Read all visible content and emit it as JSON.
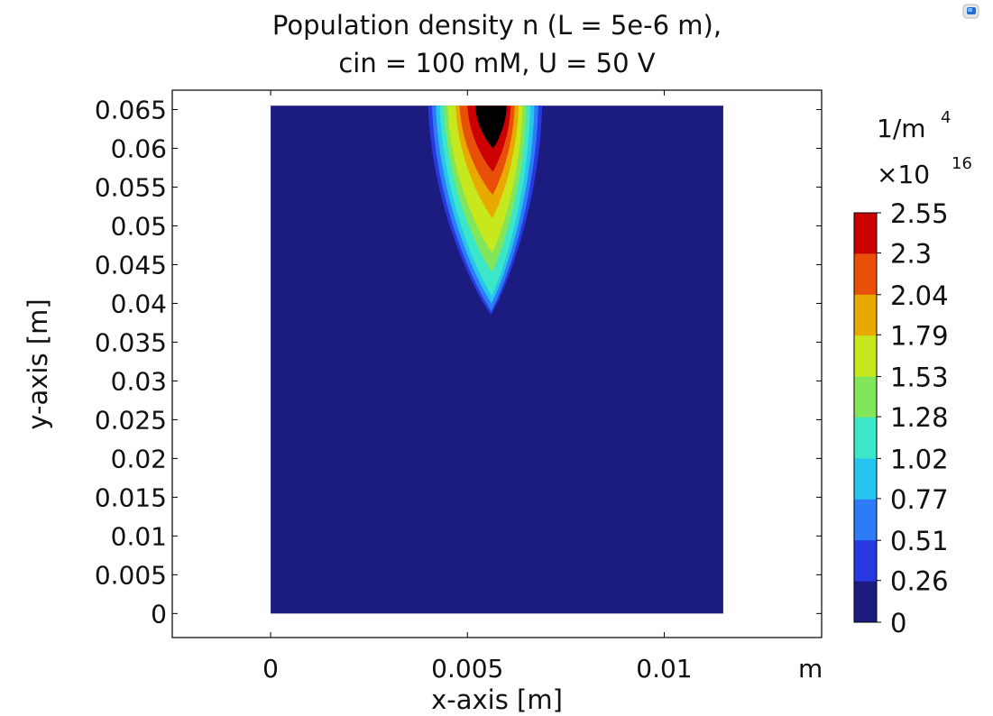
{
  "chart_data": {
    "type": "heatmap",
    "title_lines": [
      "Population density n (L = 5e-6 m),",
      "cin = 100 mM, U = 50 V"
    ],
    "xlabel": "x-axis [m]",
    "ylabel": "y-axis [m]",
    "x_unit": "m",
    "xlim": [
      -0.0025,
      0.014
    ],
    "ylim": [
      -0.0031,
      0.0675
    ],
    "x_ticks": [
      "0",
      "0.005",
      "0.01"
    ],
    "x_tick_values": [
      0,
      0.005,
      0.01
    ],
    "y_ticks": [
      "0",
      "0.005",
      "0.01",
      "0.015",
      "0.02",
      "0.025",
      "0.03",
      "0.035",
      "0.04",
      "0.045",
      "0.05",
      "0.055",
      "0.06",
      "0.065"
    ],
    "y_tick_values": [
      0,
      0.005,
      0.01,
      0.015,
      0.02,
      0.025,
      0.03,
      0.035,
      0.04,
      0.045,
      0.05,
      0.055,
      0.06,
      0.065
    ],
    "domain": {
      "x": [
        0,
        0.0115
      ],
      "y": [
        0,
        0.0655
      ]
    },
    "plume": {
      "apex": [
        0.0056,
        0.0385
      ],
      "top_y": 0.0655,
      "outer_levels": [
        {
          "level": 1,
          "left_x": 0.004,
          "right_x": 0.0069,
          "apex_y": 0.0385
        },
        {
          "level": 2,
          "left_x": 0.0041,
          "right_x": 0.0068,
          "apex_y": 0.039
        },
        {
          "level": 3,
          "left_x": 0.0042,
          "right_x": 0.0067,
          "apex_y": 0.04
        },
        {
          "level": 4,
          "left_x": 0.0043,
          "right_x": 0.0066,
          "apex_y": 0.041
        },
        {
          "level": 5,
          "left_x": 0.0044,
          "right_x": 0.0065,
          "apex_y": 0.044
        },
        {
          "level": 6,
          "left_x": 0.0045,
          "right_x": 0.0064,
          "apex_y": 0.0465
        },
        {
          "level": 7,
          "left_x": 0.0047,
          "right_x": 0.0063,
          "apex_y": 0.051
        },
        {
          "level": 8,
          "left_x": 0.0048,
          "right_x": 0.0062,
          "apex_y": 0.054
        },
        {
          "level": 9,
          "left_x": 0.005,
          "right_x": 0.0061,
          "apex_y": 0.057
        },
        {
          "level": 10,
          "left_x": 0.0052,
          "right_x": 0.006,
          "apex_y": 0.06
        }
      ]
    },
    "colorbar": {
      "unit": "1/m",
      "unit_superscript": "4",
      "multiplier": "×10",
      "multiplier_superscript": "16",
      "tick_labels": [
        "2.55",
        "2.3",
        "2.04",
        "1.79",
        "1.53",
        "1.28",
        "1.02",
        "0.77",
        "0.51",
        "0.26",
        "0"
      ],
      "tick_values": [
        2.55,
        2.3,
        2.04,
        1.79,
        1.53,
        1.28,
        1.02,
        0.77,
        0.51,
        0.26,
        0
      ],
      "range": [
        0,
        2.55
      ],
      "band_colors": [
        "#cc0000",
        "#e8500a",
        "#e8aa00",
        "#c8e81e",
        "#82e65a",
        "#3ce6c8",
        "#28c4f0",
        "#2e7cf5",
        "#2838e0",
        "#1c1c80"
      ]
    },
    "background_color": "#1c1c80",
    "corner_icon": "app-logo-icon"
  }
}
